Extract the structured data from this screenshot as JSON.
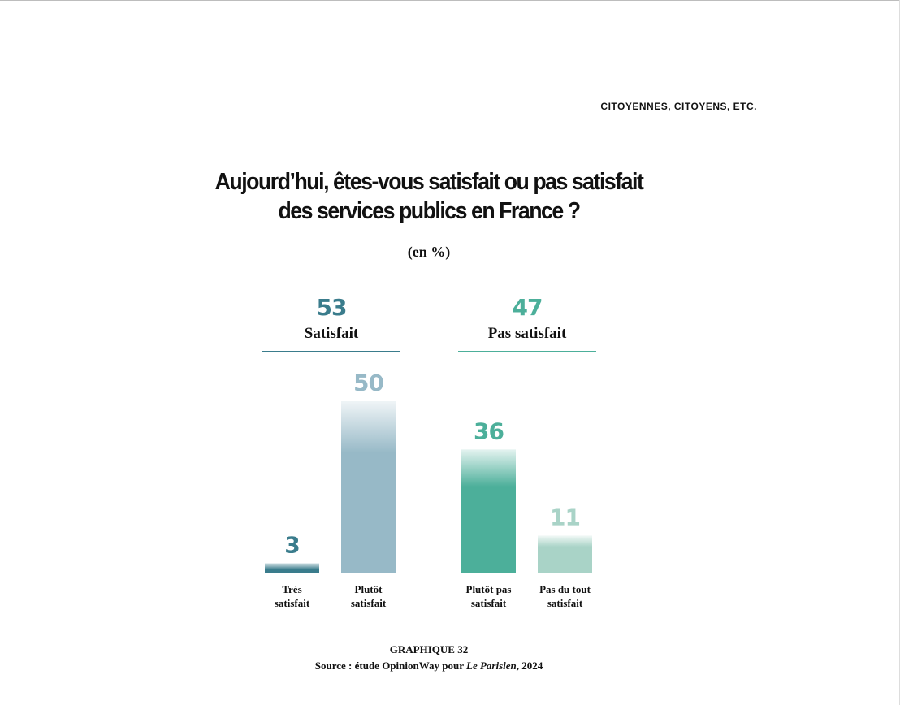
{
  "running_head": "CITOYENNES, CITOYENS, ETC.",
  "title_line1": "Aujourd’hui, êtes-vous satisfait ou pas satisfait",
  "title_line2": "des services publics en France ?",
  "subtitle": "(en %)",
  "groups": [
    {
      "total": "53",
      "label": "Satisfait",
      "color": "#3a7c8c"
    },
    {
      "total": "47",
      "label": "Pas satisfait",
      "color": "#4caf9a"
    }
  ],
  "chart_data": {
    "type": "bar",
    "categories": [
      "Très satisfait",
      "Plutôt satisfait",
      "Plutôt pas satisfait",
      "Pas du tout satisfait"
    ],
    "category_lines": [
      [
        "Très",
        "satisfait"
      ],
      [
        "Plutôt",
        "satisfait"
      ],
      [
        "Plutôt pas",
        "satisfait"
      ],
      [
        "Pas du tout",
        "satisfait"
      ]
    ],
    "values": [
      3,
      50,
      36,
      11
    ],
    "bar_colors": [
      "#3a7c8c",
      "#97b9c7",
      "#4caf9a",
      "#a9d3c7"
    ],
    "ylim": [
      0,
      50
    ]
  },
  "footer": {
    "label": "GRAPHIQUE 32",
    "source_prefix": "Source : étude OpinionWay pour ",
    "source_publication": "Le Parisien",
    "source_suffix": ", 2024"
  }
}
